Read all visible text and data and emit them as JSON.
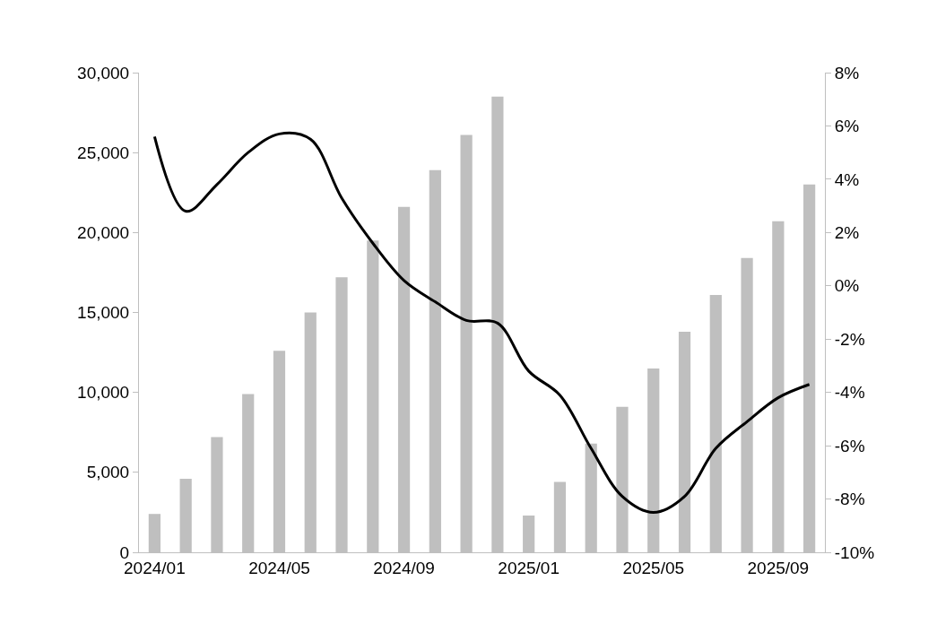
{
  "chart_data": {
    "type": "bar",
    "categories": [
      "2024/01",
      null,
      null,
      null,
      "2024/05",
      null,
      null,
      null,
      "2024/09",
      null,
      null,
      null,
      "2025/01",
      null,
      null,
      null,
      "2025/05",
      null,
      null,
      null,
      "2025/09",
      null
    ],
    "series": [
      {
        "color": "#bfbfbf",
        "values": [
          2400,
          4600,
          7200,
          9900,
          12600,
          15000,
          17200,
          19500,
          21600,
          23900,
          26100,
          28500,
          2300,
          4400,
          6800,
          9100,
          11500,
          13800,
          16100,
          18400,
          20700,
          23000
        ]
      },
      {
        "type": "line",
        "axis": "y2",
        "color": "#000000",
        "values": [
          5.6,
          2.8,
          3.8,
          5.0,
          5.7,
          5.5,
          3.3,
          1.6,
          0.2,
          -0.6,
          -1.3,
          -1.4,
          -3.2,
          -4.1,
          -6.1,
          -7.9,
          -8.5,
          -7.9,
          -6.1,
          -5.1,
          -4.2,
          -3.7
        ]
      }
    ],
    "ylim": [
      0,
      30000
    ],
    "yticks": [
      0,
      {
        "value": 5000,
        "label": "5,000"
      },
      {
        "value": 10000,
        "label": "10,000"
      },
      {
        "value": 15000,
        "label": "15,000"
      },
      {
        "value": 20000,
        "label": "20,000"
      },
      {
        "value": 25000,
        "label": "25,000"
      },
      {
        "value": 30000,
        "label": "30,000"
      }
    ],
    "y2lim": [
      -10,
      8
    ],
    "y2ticks": [
      {
        "value": -10,
        "label": "-10%"
      },
      {
        "value": -8,
        "label": "-8%"
      },
      {
        "value": -6,
        "label": "-6%"
      },
      {
        "value": -4,
        "label": "-4%"
      },
      {
        "value": -2,
        "label": "-2%"
      },
      {
        "value": 0,
        "label": "0%"
      },
      {
        "value": 2,
        "label": "2%"
      },
      {
        "value": 4,
        "label": "4%"
      },
      {
        "value": 6,
        "label": "6%"
      },
      {
        "value": 8,
        "label": "8%"
      }
    ],
    "grid": false,
    "marker": "none",
    "line_style": "solid"
  }
}
